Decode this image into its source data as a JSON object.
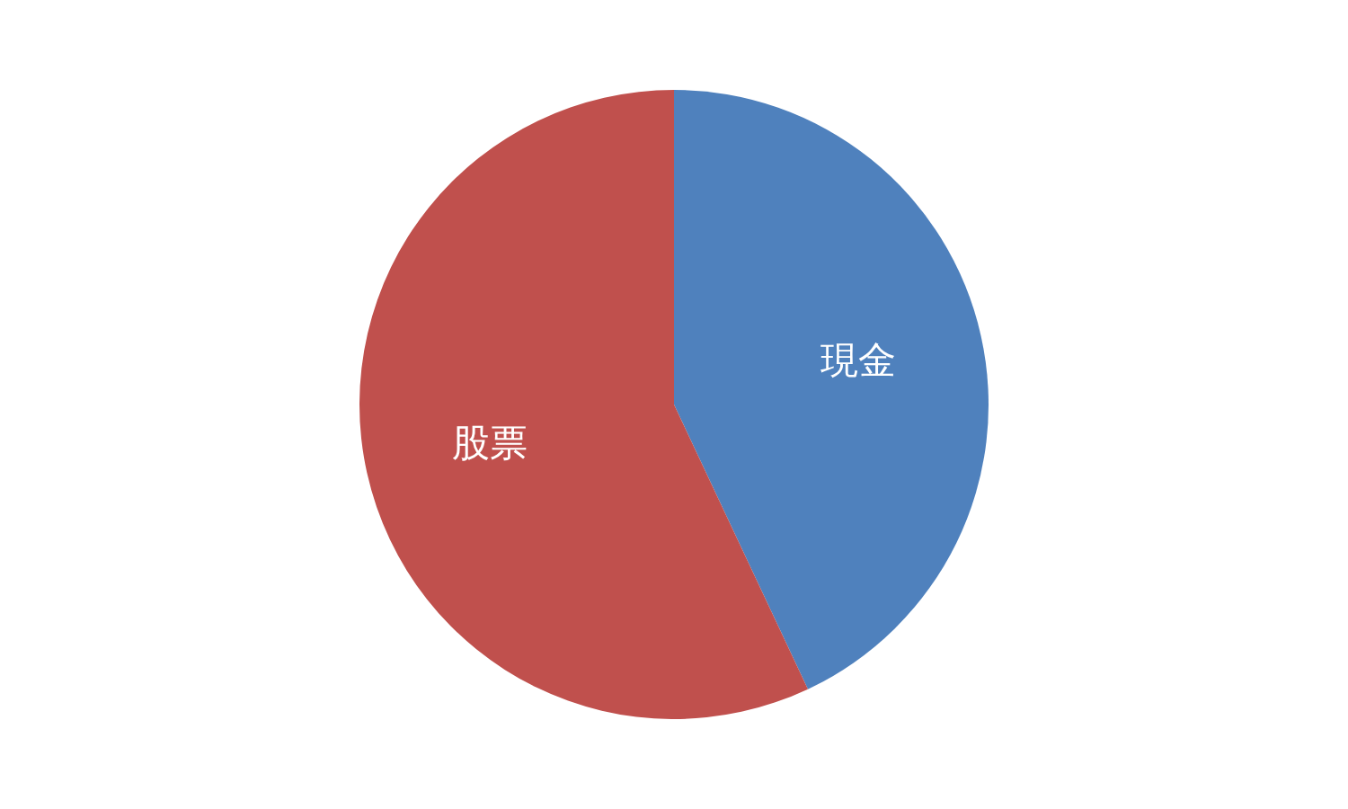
{
  "chart_data": {
    "type": "pie",
    "categories": [
      "現金",
      "股票"
    ],
    "values": [
      43,
      57
    ],
    "colors": [
      "#4f81bd",
      "#c0504d"
    ],
    "legend": false
  }
}
